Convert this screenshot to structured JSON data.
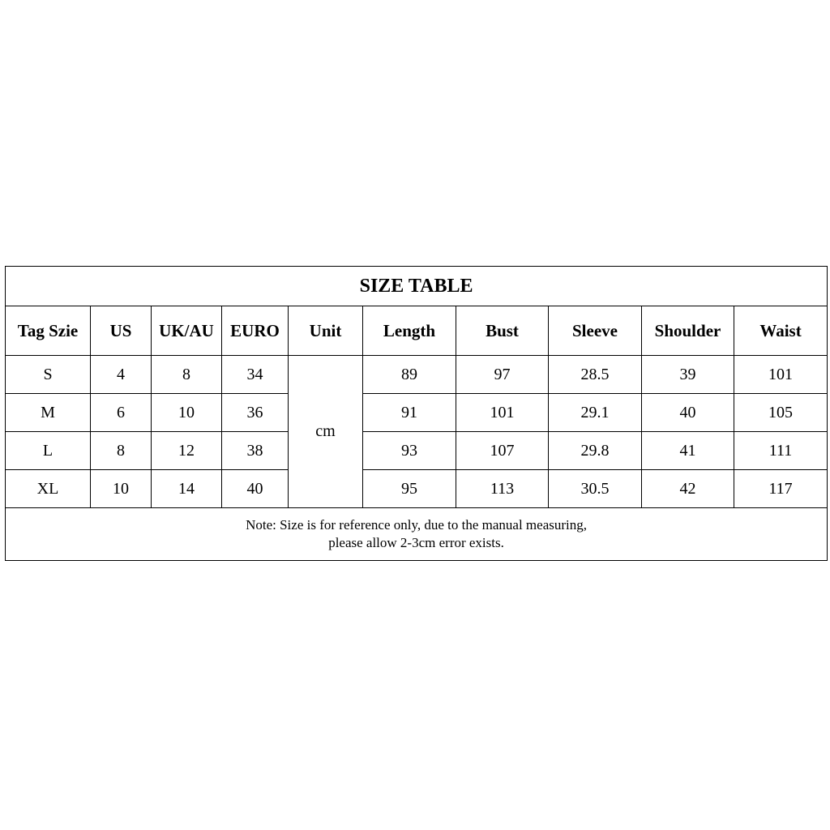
{
  "title": "SIZE TABLE",
  "headers": [
    "Tag Szie",
    "US",
    "UK/AU",
    "EURO",
    "Unit",
    "Length",
    "Bust",
    "Sleeve",
    "Shoulder",
    "Waist"
  ],
  "unit": "cm",
  "rows": [
    {
      "tag": "S",
      "us": "4",
      "ukau": "8",
      "euro": "34",
      "length": "89",
      "bust": "97",
      "sleeve": "28.5",
      "shoulder": "39",
      "waist": "101"
    },
    {
      "tag": "M",
      "us": "6",
      "ukau": "10",
      "euro": "36",
      "length": "91",
      "bust": "101",
      "sleeve": "29.1",
      "shoulder": "40",
      "waist": "105"
    },
    {
      "tag": "L",
      "us": "8",
      "ukau": "12",
      "euro": "38",
      "length": "93",
      "bust": "107",
      "sleeve": "29.8",
      "shoulder": "41",
      "waist": "111"
    },
    {
      "tag": "XL",
      "us": "10",
      "ukau": "14",
      "euro": "40",
      "length": "95",
      "bust": "113",
      "sleeve": "30.5",
      "shoulder": "42",
      "waist": "117"
    }
  ],
  "note": {
    "line1": "Note: Size is for reference only, due to the manual measuring,",
    "line2": "please allow 2-3cm error exists."
  }
}
